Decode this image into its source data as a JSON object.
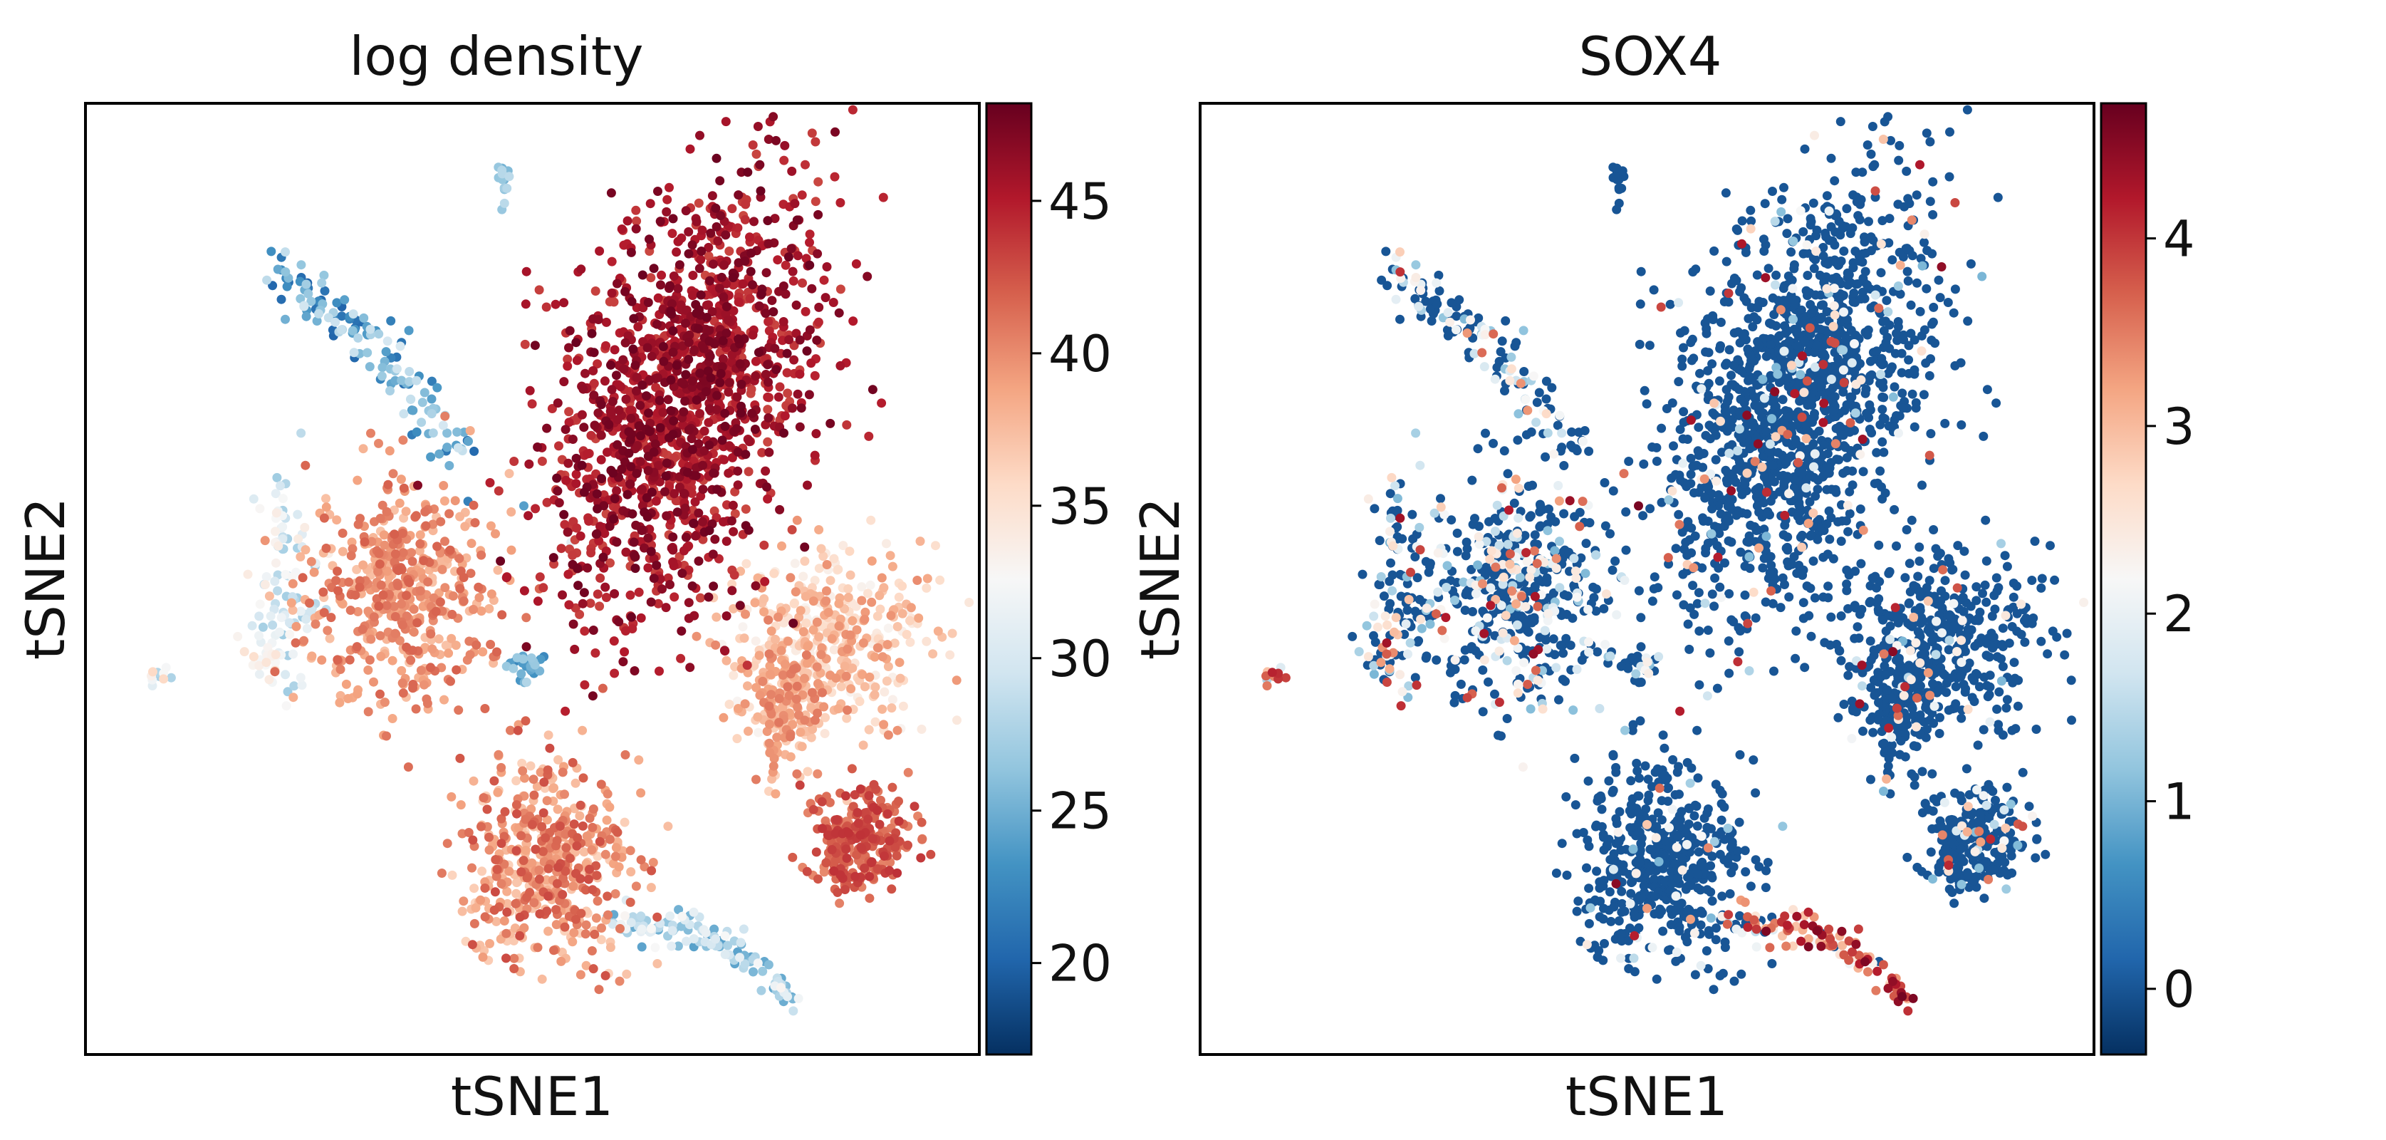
{
  "chart_data": [
    {
      "type": "scatter",
      "title": "log density",
      "xlabel": "tSNE1",
      "ylabel": "tSNE2",
      "colorbar": {
        "colormap": "RdBu_r",
        "range": [
          17.0,
          48.2
        ],
        "ticks": [
          20,
          25,
          30,
          35,
          40,
          45
        ],
        "tick_labels": [
          "20",
          "25",
          "30",
          "35",
          "40",
          "45"
        ]
      },
      "axis_ticks": "none",
      "grid": false
    },
    {
      "type": "scatter",
      "title": "SOX4",
      "xlabel": "tSNE1",
      "ylabel": "tSNE2",
      "colorbar": {
        "colormap": "RdBu_r",
        "range": [
          -0.35,
          4.72
        ],
        "ticks": [
          0,
          1,
          2,
          3,
          4
        ],
        "tick_labels": [
          "0",
          "1",
          "2",
          "3",
          "4"
        ]
      },
      "axis_ticks": "none",
      "grid": false
    }
  ],
  "embedding": {
    "x_range": [
      0,
      100
    ],
    "y_range": [
      0,
      100
    ],
    "clusters": [
      {
        "id": "top-tiny",
        "cx": 46.6,
        "cy": 93.6,
        "sx": 0.5,
        "sy": 1.2,
        "n": 14,
        "density": [
          24,
          30
        ],
        "sox4": [
          0,
          0,
          0
        ]
      },
      {
        "id": "upper-left-arm",
        "cx": 31.5,
        "cy": 76.0,
        "sx": 5.0,
        "sy": 4.8,
        "n": 140,
        "density": [
          20,
          30
        ],
        "sox4": [
          0,
          0.1,
          0.3
        ],
        "shape": "arm"
      },
      {
        "id": "main-upper",
        "cx": 67.5,
        "cy": 70.0,
        "sx": 7.0,
        "sy": 11.5,
        "n": 1500,
        "density": [
          43,
          48
        ],
        "sox4": [
          0,
          0.05,
          0.04
        ]
      },
      {
        "id": "right-mid",
        "cx": 84.5,
        "cy": 44.5,
        "sx": 5.5,
        "sy": 4.8,
        "n": 380,
        "density": [
          33,
          40
        ],
        "sox4": [
          0,
          0.05,
          0.05
        ]
      },
      {
        "id": "right-lower",
        "cx": 79.5,
        "cy": 36.0,
        "sx": 2.8,
        "sy": 3.4,
        "n": 200,
        "density": [
          36,
          41
        ],
        "sox4": [
          0,
          0.05,
          0.05
        ]
      },
      {
        "id": "far-right-low",
        "cx": 88.0,
        "cy": 21.5,
        "sx": 3.0,
        "sy": 3.0,
        "n": 260,
        "density": [
          40,
          44
        ],
        "sox4": [
          0,
          0.05,
          0.06
        ]
      },
      {
        "id": "left-big",
        "cx": 34.5,
        "cy": 48.5,
        "sx": 5.2,
        "sy": 6.5,
        "n": 500,
        "density": [
          37,
          42
        ],
        "sox4": [
          0,
          0.12,
          0.25
        ]
      },
      {
        "id": "left-stalk",
        "cx": 21.0,
        "cy": 50.0,
        "sx": 2.0,
        "sy": 5.5,
        "n": 90,
        "density": [
          27,
          34
        ],
        "sox4": [
          0,
          0.15,
          0.3
        ]
      },
      {
        "id": "left-small",
        "cx": 19.5,
        "cy": 41.5,
        "sx": 1.2,
        "sy": 1.3,
        "n": 25,
        "density": [
          31,
          36
        ],
        "sox4": [
          0,
          0.2,
          0.3
        ]
      },
      {
        "id": "far-left",
        "cx": 6.5,
        "cy": 39.5,
        "sx": 0.9,
        "sy": 0.6,
        "n": 10,
        "density": [
          26,
          36
        ],
        "sox4": [
          0.4,
          0.6,
          0.7
        ]
      },
      {
        "id": "mid-small",
        "cx": 49.5,
        "cy": 40.5,
        "sx": 1.3,
        "sy": 0.8,
        "n": 28,
        "density": [
          22,
          28
        ],
        "sox4": [
          0,
          0,
          0.2
        ]
      },
      {
        "id": "bottom-center",
        "cx": 51.5,
        "cy": 19.5,
        "sx": 4.8,
        "sy": 5.6,
        "n": 500,
        "density": [
          36,
          43
        ],
        "sox4": [
          0,
          0.02,
          0.06
        ]
      },
      {
        "id": "bottom-tail",
        "cx": 66.0,
        "cy": 7.5,
        "sx": 4.5,
        "sy": 1.6,
        "n": 120,
        "density": [
          24,
          33
        ],
        "sox4": [
          0.5,
          0.8,
          0.05
        ],
        "shape": "tail"
      }
    ],
    "stray_points": [
      {
        "x": 42.5,
        "y": 58.5,
        "density": 22,
        "sox4": 3.6
      },
      {
        "x": 49.0,
        "y": 58.0,
        "density": 24,
        "sox4": 4.6
      },
      {
        "x": 54.5,
        "y": 54.0,
        "density": 31,
        "sox4": 0
      }
    ]
  }
}
